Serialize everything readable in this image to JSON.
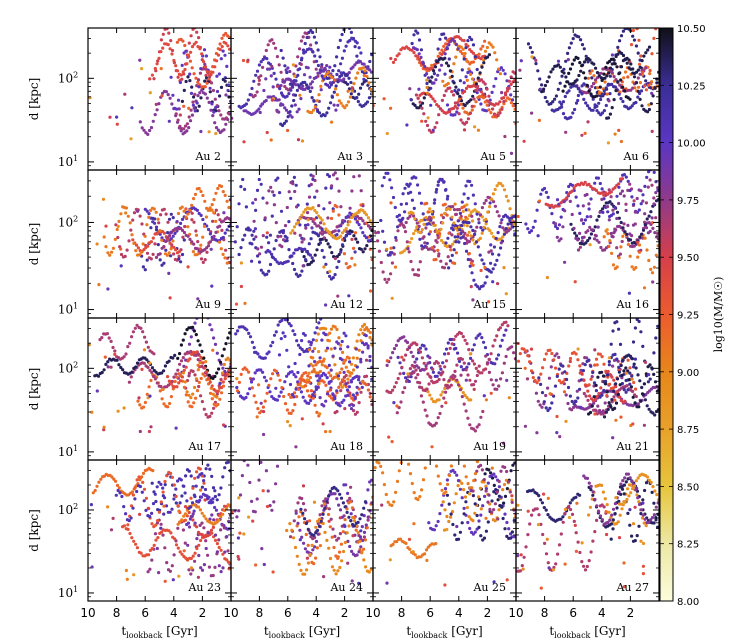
{
  "chart_data": {
    "type": "scatter",
    "description_of_layout": "4x4 grid of log-scale scatter panels sharing axes",
    "xlabel_main": "t",
    "xlabel_sub": "lookback",
    "xlabel_unit": "[Gyr]",
    "ylabel": "d [kpc]",
    "xlim": [
      10,
      0
    ],
    "ylim": [
      8,
      400
    ],
    "x_ticks": [
      "10",
      "8",
      "6",
      "4",
      "2"
    ],
    "x_tick_values": [
      10,
      8,
      6,
      4,
      2
    ],
    "y_ticks": [
      "10",
      "10"
    ],
    "y_tick_exponents": [
      "1",
      "2"
    ],
    "y_tick_values": [
      10,
      100
    ],
    "colorbar": {
      "label": "log10(M/M☉)",
      "min": 8.0,
      "max": 10.5,
      "ticks": [
        "8.00",
        "8.25",
        "8.50",
        "8.75",
        "9.00",
        "9.25",
        "9.50",
        "9.75",
        "10.00",
        "10.25",
        "10.50"
      ],
      "tick_values": [
        8.0,
        8.25,
        8.5,
        8.75,
        9.0,
        9.25,
        9.5,
        9.75,
        10.0,
        10.25,
        10.5
      ],
      "colors": [
        "#fcfcdc",
        "#ede8a4",
        "#e6c53c",
        "#e8a12a",
        "#e8861b",
        "#ec5b2f",
        "#d63f4a",
        "#8f3a8a",
        "#5b36c4",
        "#3a2e95",
        "#101018"
      ]
    },
    "panels": [
      {
        "label": "Au 2",
        "seed": 2
      },
      {
        "label": "Au 3",
        "seed": 3
      },
      {
        "label": "Au 5",
        "seed": 5
      },
      {
        "label": "Au 6",
        "seed": 6
      },
      {
        "label": "Au 9",
        "seed": 9
      },
      {
        "label": "Au 12",
        "seed": 12
      },
      {
        "label": "Au 15",
        "seed": 15
      },
      {
        "label": "Au 16",
        "seed": 16
      },
      {
        "label": "Au 17",
        "seed": 17
      },
      {
        "label": "Au 18",
        "seed": 18
      },
      {
        "label": "Au 19",
        "seed": 19
      },
      {
        "label": "Au 21",
        "seed": 21
      },
      {
        "label": "Au 23",
        "seed": 23
      },
      {
        "label": "Au 24",
        "seed": 24
      },
      {
        "label": "Au 25",
        "seed": 25
      },
      {
        "label": "Au 27",
        "seed": 27
      }
    ]
  }
}
